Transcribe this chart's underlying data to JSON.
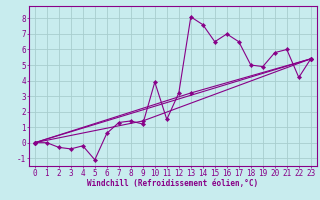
{
  "title": "",
  "xlabel": "Windchill (Refroidissement éolien,°C)",
  "xlim": [
    -0.5,
    23.5
  ],
  "ylim": [
    -1.5,
    8.8
  ],
  "xticks": [
    0,
    1,
    2,
    3,
    4,
    5,
    6,
    7,
    8,
    9,
    10,
    11,
    12,
    13,
    14,
    15,
    16,
    17,
    18,
    19,
    20,
    21,
    22,
    23
  ],
  "yticks": [
    -1,
    0,
    1,
    2,
    3,
    4,
    5,
    6,
    7,
    8
  ],
  "bg_color": "#c8ecee",
  "grid_color": "#a8cece",
  "line_color": "#880088",
  "line1_x": [
    0,
    1,
    2,
    3,
    4,
    5,
    6,
    7,
    8,
    9,
    10,
    11,
    12,
    13,
    14,
    15,
    16,
    17,
    18,
    19,
    20,
    21,
    22,
    23
  ],
  "line1_y": [
    0.0,
    0.0,
    -0.3,
    -0.4,
    -0.2,
    -1.1,
    0.6,
    1.3,
    1.4,
    1.2,
    3.9,
    1.5,
    3.2,
    8.1,
    7.6,
    6.5,
    7.0,
    6.5,
    5.0,
    4.9,
    5.8,
    6.0,
    4.2,
    5.4
  ],
  "line2_x": [
    0,
    23
  ],
  "line2_y": [
    0.0,
    5.4
  ],
  "line3_x": [
    0,
    13,
    23
  ],
  "line3_y": [
    0.0,
    3.2,
    5.4
  ],
  "line4_x": [
    0,
    9,
    23
  ],
  "line4_y": [
    0.0,
    1.4,
    5.4
  ],
  "xlabel_fontsize": 5.5,
  "tick_fontsize": 5.5
}
